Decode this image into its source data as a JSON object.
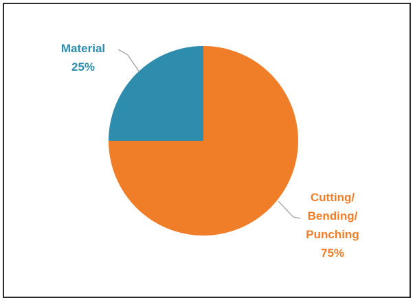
{
  "chart_data": {
    "type": "pie",
    "title": "",
    "categories": [
      "Material",
      "Cutting/ Bending/ Punching"
    ],
    "values": [
      25,
      75
    ],
    "colors": [
      "#2e8dad",
      "#f07d28"
    ],
    "labels": [
      {
        "lines": [
          "Material",
          "25%"
        ],
        "color": "#2e8dad"
      },
      {
        "lines": [
          "Cutting/",
          "Bending/",
          "Punching",
          "75%"
        ],
        "color": "#f07d28"
      }
    ]
  }
}
